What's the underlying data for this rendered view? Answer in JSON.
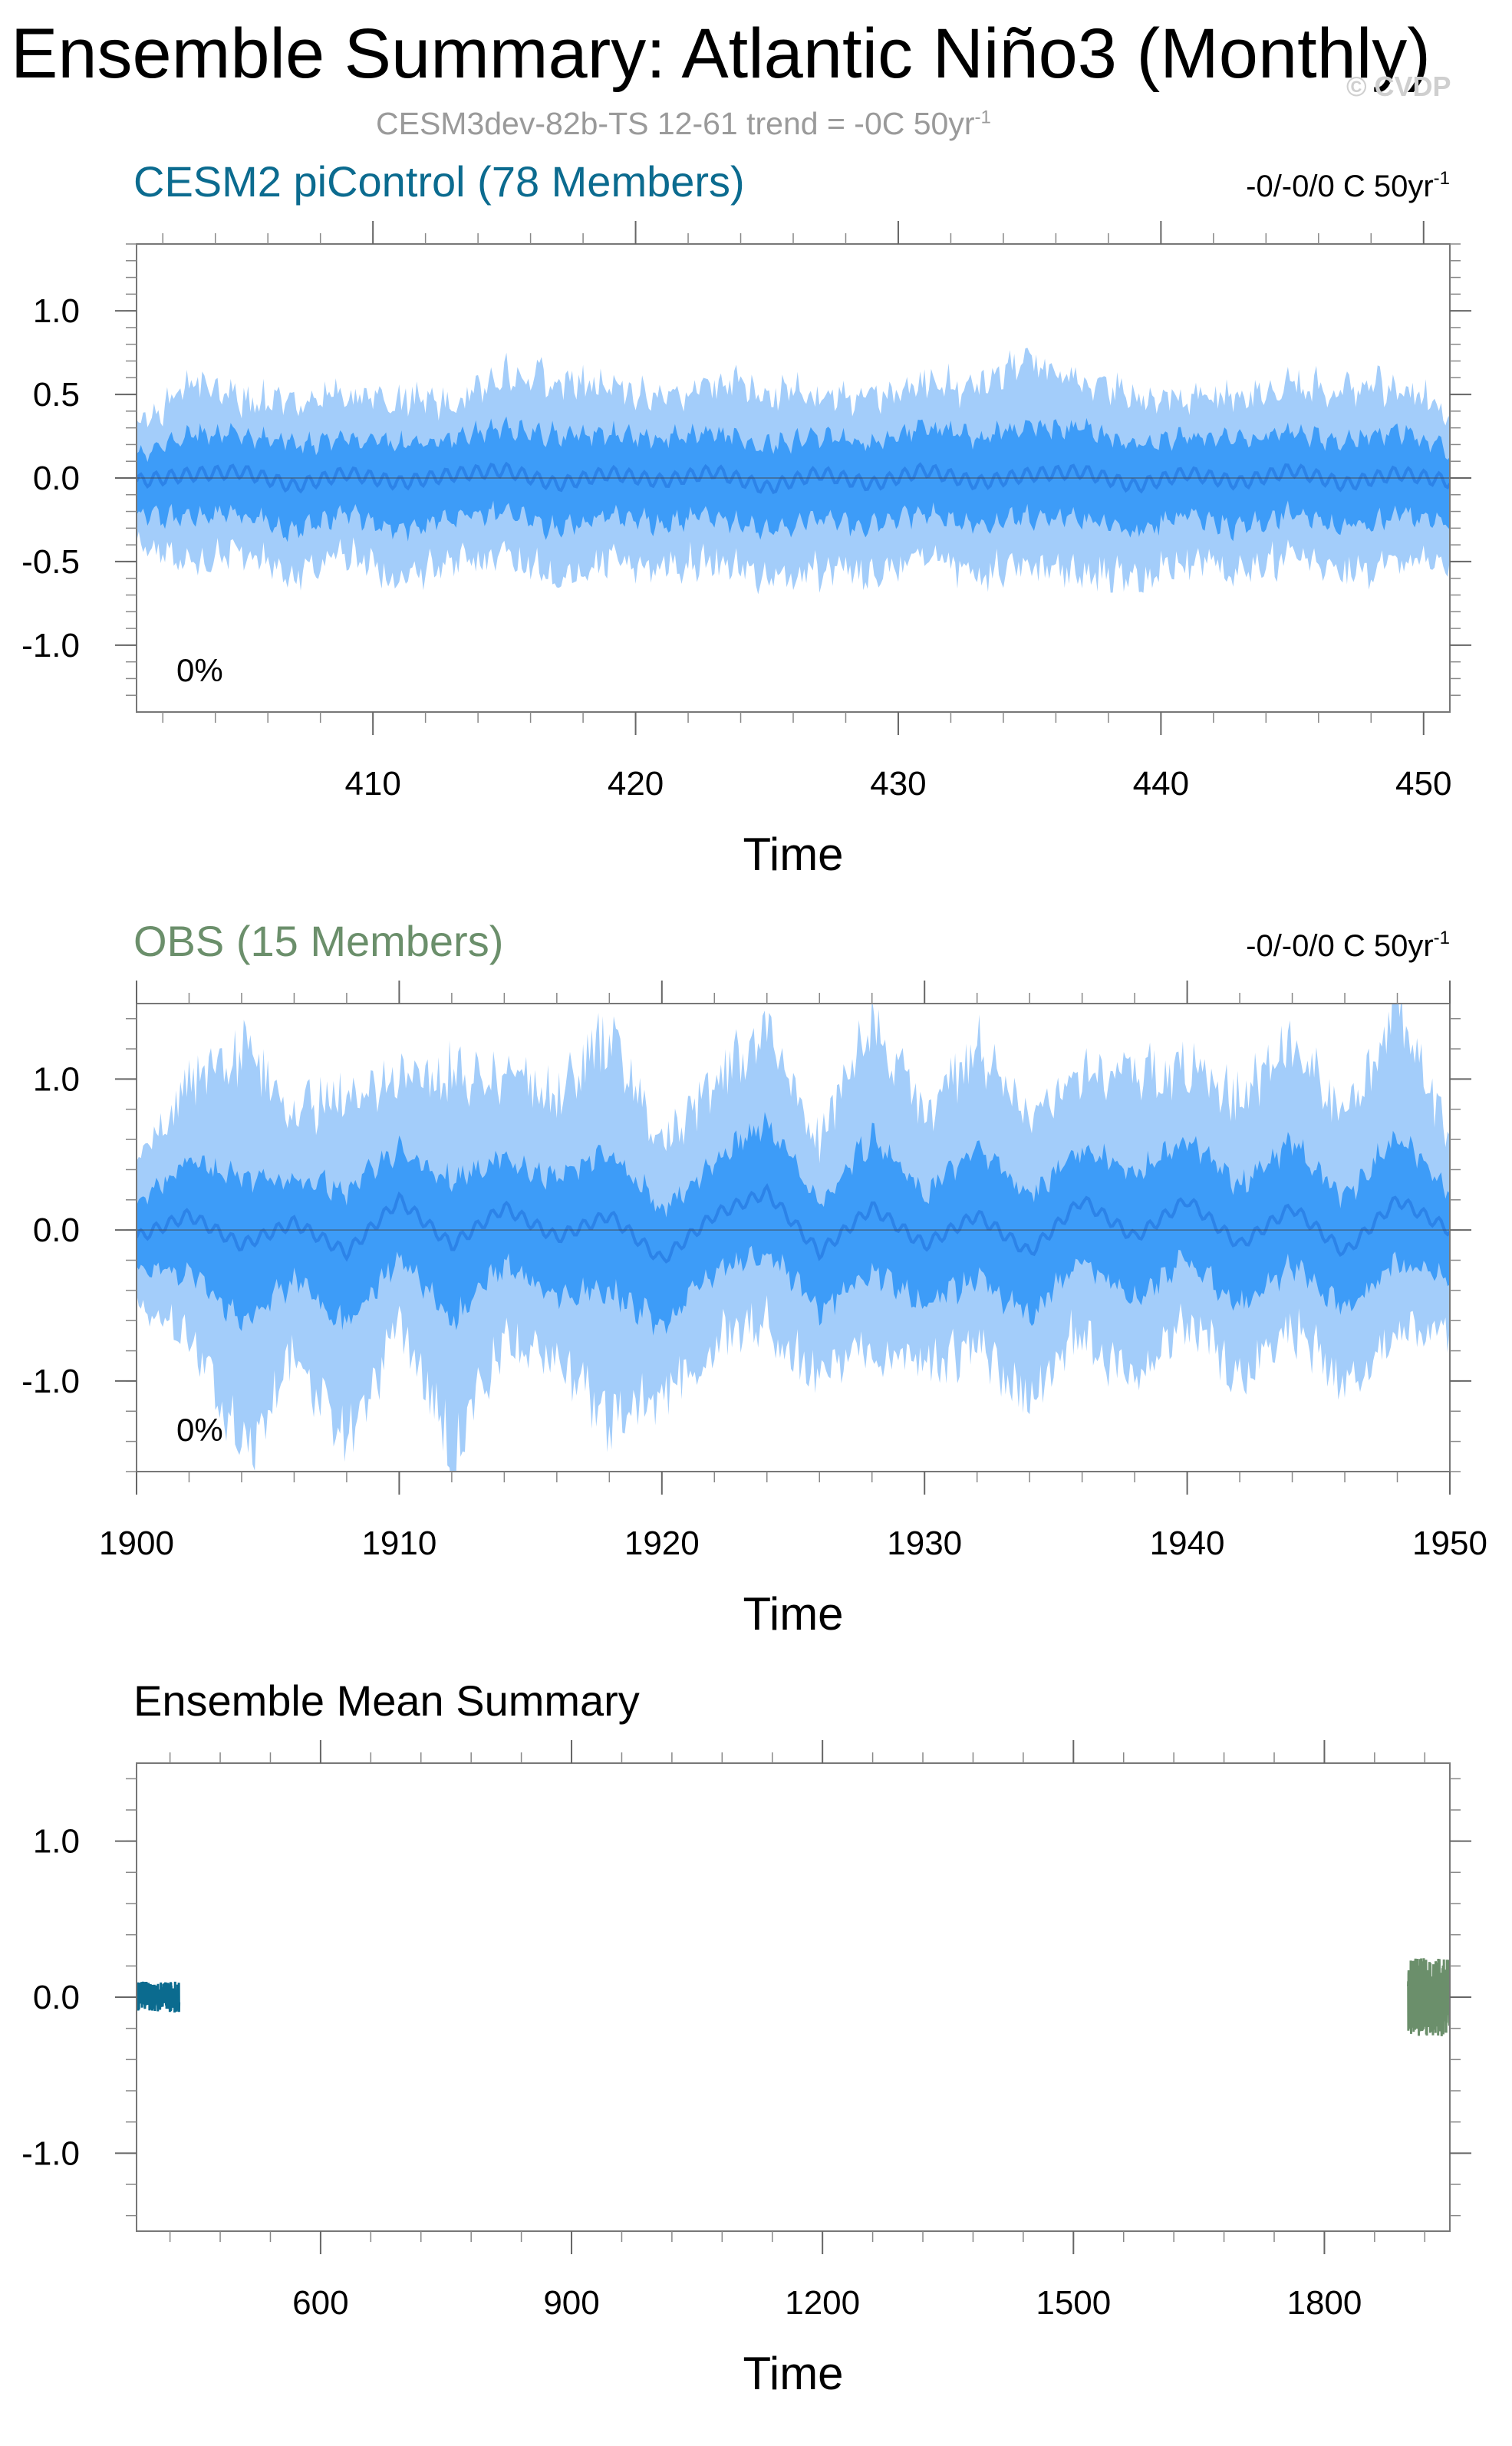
{
  "figure": {
    "title": "Ensemble Summary: Atlantic Niño3 (Monthly)",
    "subtitle": "CESM3dev-82b-TS 12-61 trend = -0C 50yr",
    "subtitle_exp": "-1",
    "copyright": "© CVDP"
  },
  "colors": {
    "model": "#0b6b8f",
    "obs": "#6b8f6b",
    "band_outer": "#a3cdfa",
    "band_inner": "#3d9cf8",
    "mean_line": "#2c83e8"
  },
  "chart_data": [
    {
      "type": "area",
      "title": "CESM2 piControl (78 Members)",
      "trend_text": "-0/-0/0 C 50yr",
      "trend_exp": "-1",
      "annotation": "0%",
      "xlabel": "Time",
      "ylabel": "",
      "xlim": [
        401,
        451
      ],
      "ylim": [
        -1.4,
        1.4
      ],
      "xticks": [
        410,
        420,
        430,
        440,
        450
      ],
      "xtick_labels": [
        "410",
        "420",
        "430",
        "440",
        "450"
      ],
      "yticks": [
        1.0,
        0.5,
        0.0,
        -0.5,
        -1.0
      ],
      "ytick_labels": [
        "1.0",
        "0.5",
        "0.0",
        "-0.5",
        "-1.0"
      ],
      "series": [
        {
          "role": "outer_band",
          "x": [
            401,
            403,
            405,
            407,
            409,
            411,
            413,
            415,
            417,
            419,
            421,
            423,
            425,
            427,
            429,
            431,
            433,
            435,
            437,
            439,
            441,
            443,
            445,
            447,
            449,
            451
          ],
          "upper": [
            0.38,
            0.62,
            0.5,
            0.6,
            0.55,
            0.58,
            0.5,
            0.65,
            0.75,
            0.6,
            0.58,
            0.62,
            0.66,
            0.55,
            0.6,
            0.62,
            0.68,
            0.78,
            0.62,
            0.6,
            0.55,
            0.6,
            0.58,
            0.65,
            0.62,
            0.48
          ],
          "lower": [
            -0.45,
            -0.6,
            -0.58,
            -0.62,
            -0.55,
            -0.7,
            -0.62,
            -0.6,
            -0.66,
            -0.62,
            -0.6,
            -0.62,
            -0.6,
            -0.66,
            -0.62,
            -0.6,
            -0.64,
            -0.62,
            -0.7,
            -0.65,
            -0.6,
            -0.62,
            -0.6,
            -0.62,
            -0.6,
            -0.55
          ]
        },
        {
          "role": "inner_band",
          "x": [
            401,
            403,
            405,
            407,
            409,
            411,
            413,
            415,
            417,
            419,
            421,
            423,
            425,
            427,
            429,
            431,
            433,
            435,
            437,
            439,
            441,
            443,
            445,
            447,
            449,
            451
          ],
          "upper": [
            0.18,
            0.28,
            0.26,
            0.3,
            0.24,
            0.28,
            0.25,
            0.3,
            0.34,
            0.28,
            0.3,
            0.28,
            0.3,
            0.26,
            0.28,
            0.3,
            0.32,
            0.34,
            0.3,
            0.28,
            0.26,
            0.3,
            0.27,
            0.3,
            0.3,
            0.22
          ],
          "lower": [
            -0.25,
            -0.3,
            -0.3,
            -0.32,
            -0.28,
            -0.34,
            -0.3,
            -0.3,
            -0.32,
            -0.3,
            -0.3,
            -0.32,
            -0.3,
            -0.32,
            -0.3,
            -0.3,
            -0.32,
            -0.3,
            -0.34,
            -0.32,
            -0.3,
            -0.32,
            -0.3,
            -0.3,
            -0.3,
            -0.28
          ]
        },
        {
          "role": "ensemble_mean",
          "x": [
            401,
            403,
            405,
            407,
            409,
            411,
            413,
            415,
            417,
            419,
            421,
            423,
            425,
            427,
            429,
            431,
            433,
            435,
            437,
            439,
            441,
            443,
            445,
            447,
            449,
            451
          ],
          "values": [
            -0.02,
            0.02,
            0.04,
            -0.05,
            0.03,
            -0.03,
            0.02,
            0.05,
            -0.04,
            0.03,
            -0.02,
            0.04,
            -0.06,
            0.03,
            -0.04,
            0.05,
            -0.03,
            0.02,
            0.04,
            -0.05,
            0.03,
            -0.03,
            0.05,
            -0.04,
            0.03,
            -0.02
          ]
        }
      ]
    },
    {
      "type": "area",
      "title": "OBS (15 Members)",
      "trend_text": "-0/-0/0 C 50yr",
      "trend_exp": "-1",
      "annotation": "0%",
      "xlabel": "Time",
      "ylabel": "",
      "xlim": [
        1900,
        1950
      ],
      "ylim": [
        -1.6,
        1.5
      ],
      "xticks": [
        1900,
        1910,
        1920,
        1930,
        1940,
        1950
      ],
      "xtick_labels": [
        "1900",
        "1910",
        "1920",
        "1930",
        "1940",
        "1950"
      ],
      "yticks": [
        1.0,
        0.0,
        -1.0
      ],
      "ytick_labels": [
        "1.0",
        "0.0",
        "-1.0"
      ],
      "series": [
        {
          "role": "outer_band",
          "x": [
            1900,
            1902,
            1904,
            1906,
            1908,
            1910,
            1912,
            1914,
            1916,
            1918,
            1920,
            1922,
            1924,
            1926,
            1928,
            1930,
            1932,
            1934,
            1936,
            1938,
            1940,
            1942,
            1944,
            1946,
            1948,
            1950
          ],
          "upper": [
            0.55,
            1.0,
            1.45,
            0.8,
            1.25,
            0.9,
            1.3,
            0.95,
            1.1,
            1.35,
            0.9,
            1.0,
            1.2,
            0.85,
            1.45,
            0.9,
            1.25,
            1.0,
            0.95,
            1.2,
            1.0,
            1.1,
            1.25,
            1.0,
            1.45,
            0.7
          ],
          "lower": [
            -0.5,
            -0.9,
            -1.6,
            -1.0,
            -1.5,
            -0.9,
            -1.55,
            -1.0,
            -0.9,
            -1.55,
            -1.05,
            -0.95,
            -1.0,
            -0.95,
            -1.05,
            -0.9,
            -1.0,
            -1.1,
            -0.95,
            -1.1,
            -0.9,
            -1.0,
            -0.9,
            -1.0,
            -1.0,
            -0.75
          ]
        },
        {
          "role": "inner_band",
          "x": [
            1900,
            1902,
            1904,
            1906,
            1908,
            1910,
            1912,
            1914,
            1916,
            1918,
            1920,
            1922,
            1924,
            1926,
            1928,
            1930,
            1932,
            1934,
            1936,
            1938,
            1940,
            1942,
            1944,
            1946,
            1948,
            1950
          ],
          "upper": [
            0.25,
            0.45,
            0.5,
            0.35,
            0.5,
            0.4,
            0.5,
            0.4,
            0.45,
            0.5,
            0.4,
            0.42,
            0.55,
            0.38,
            0.55,
            0.4,
            0.5,
            0.45,
            0.4,
            0.5,
            0.45,
            0.48,
            0.5,
            0.42,
            0.5,
            0.3
          ],
          "lower": [
            -0.25,
            -0.45,
            -0.6,
            -0.45,
            -0.55,
            -0.45,
            -0.6,
            -0.45,
            -0.45,
            -0.6,
            -0.5,
            -0.45,
            -0.45,
            -0.45,
            -0.5,
            -0.45,
            -0.5,
            -0.5,
            -0.45,
            -0.5,
            -0.45,
            -0.48,
            -0.45,
            -0.45,
            -0.5,
            -0.35
          ]
        },
        {
          "role": "ensemble_mean",
          "x": [
            1900,
            1902,
            1904,
            1906,
            1908,
            1910,
            1912,
            1914,
            1916,
            1918,
            1920,
            1922,
            1924,
            1926,
            1928,
            1930,
            1932,
            1934,
            1936,
            1938,
            1940,
            1942,
            1944,
            1946,
            1948,
            1950
          ],
          "values": [
            -0.05,
            0.1,
            -0.1,
            0.05,
            -0.15,
            0.2,
            -0.1,
            0.15,
            -0.05,
            0.1,
            -0.2,
            0.1,
            0.25,
            -0.15,
            0.15,
            -0.1,
            0.1,
            -0.15,
            0.2,
            -0.05,
            0.2,
            -0.1,
            0.15,
            -0.15,
            0.2,
            0.0
          ]
        }
      ]
    },
    {
      "type": "line",
      "title": "Ensemble Mean Summary",
      "xlabel": "Time",
      "ylabel": "",
      "xlim": [
        380,
        1950
      ],
      "ylim": [
        -1.5,
        1.5
      ],
      "xticks": [
        600,
        900,
        1200,
        1500,
        1800
      ],
      "xtick_labels": [
        "600",
        "900",
        "1200",
        "1500",
        "1800"
      ],
      "yticks": [
        1.0,
        0.0,
        -1.0
      ],
      "ytick_labels": [
        "1.0",
        "0.0",
        "-1.0"
      ],
      "series": [
        {
          "name": "CESM2 piControl (78 Members)",
          "x_range": [
            380,
            431
          ],
          "amplitude": 0.1,
          "color": "#0b6b8f"
        },
        {
          "name": "OBS (15 Members)",
          "x_range": [
            1900,
            1950
          ],
          "amplitude": 0.25,
          "color": "#6b8f6b"
        }
      ]
    }
  ]
}
